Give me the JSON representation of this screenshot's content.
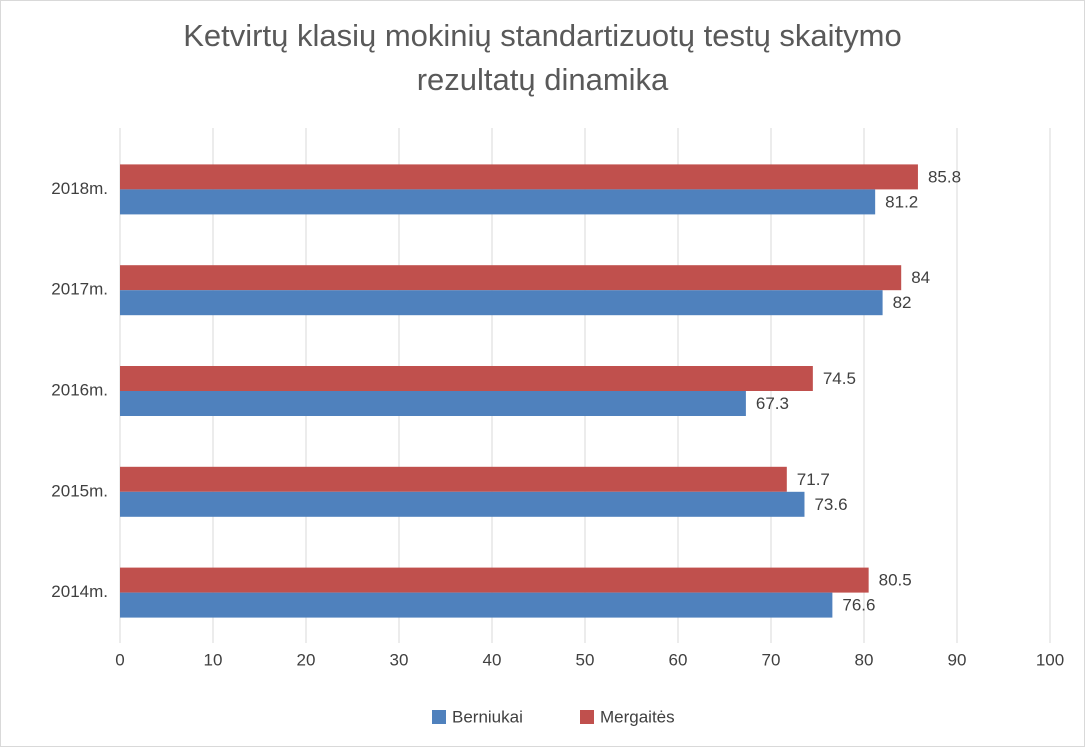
{
  "chart_data": {
    "type": "hbar",
    "title": "Ketvirtų klasių mokinių standartizuotų testų skaitymo rezultatų dinamika",
    "categories": [
      "2014m.",
      "2015m.",
      "2016m.",
      "2017m.",
      "2018m."
    ],
    "series": [
      {
        "name": "Berniukai",
        "color": "#4f81bd",
        "values": [
          76.6,
          73.6,
          67.3,
          82,
          81.2
        ]
      },
      {
        "name": "Mergaitės",
        "color": "#c0504d",
        "values": [
          80.5,
          71.7,
          74.5,
          84,
          85.8
        ]
      }
    ],
    "xlim": [
      0,
      100
    ],
    "xticks": [
      0,
      10,
      20,
      30,
      40,
      50,
      60,
      70,
      80,
      90,
      100
    ],
    "grid": true,
    "legend": "bottom"
  }
}
